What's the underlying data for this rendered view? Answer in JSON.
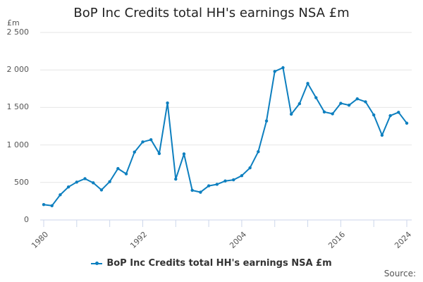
{
  "chart_data": {
    "type": "line",
    "title": "BoP Inc Credits total HH's earnings NSA £m",
    "xlabel": "",
    "ylabel": "£m",
    "ylim": [
      0,
      2500
    ],
    "y_ticks": [
      "0",
      "500",
      "1 000",
      "1 500",
      "2 000",
      "2 500"
    ],
    "y_tick_values": [
      0,
      500,
      1000,
      1500,
      2000,
      2500
    ],
    "x_tick_labels": [
      "1980",
      "1992",
      "2004",
      "2016",
      "2024"
    ],
    "grid": true,
    "legend_position": "bottom",
    "x": [
      1980,
      1981,
      1982,
      1983,
      1984,
      1985,
      1986,
      1987,
      1988,
      1989,
      1990,
      1991,
      1992,
      1993,
      1994,
      1995,
      1996,
      1997,
      1998,
      1999,
      2000,
      2001,
      2002,
      2003,
      2004,
      2005,
      2006,
      2007,
      2008,
      2009,
      2010,
      2011,
      2012,
      2013,
      2014,
      2015,
      2016,
      2017,
      2018,
      2019,
      2020,
      2021,
      2022,
      2023,
      2024
    ],
    "series": [
      {
        "name": "BoP Inc Credits total HH's earnings NSA £m",
        "color": "#0d7fbf",
        "values": [
          205,
          190,
          335,
          440,
          505,
          550,
          495,
          400,
          510,
          685,
          615,
          905,
          1040,
          1070,
          885,
          1560,
          545,
          880,
          395,
          370,
          455,
          475,
          520,
          535,
          590,
          695,
          910,
          1320,
          1980,
          2030,
          1410,
          1550,
          1820,
          1630,
          1440,
          1415,
          1555,
          1530,
          1615,
          1575,
          1400,
          1130,
          1390,
          1435,
          1290
        ]
      }
    ]
  },
  "legend": {
    "label": "BoP Inc Credits total HH's earnings NSA £m"
  },
  "footer": {
    "source_label": "Source:"
  }
}
